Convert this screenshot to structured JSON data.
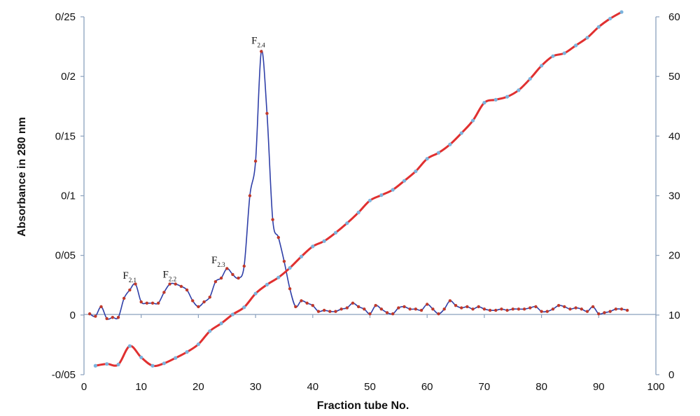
{
  "chart_data": {
    "type": "line",
    "xlabel": "Fraction tube No.",
    "ylabel": "Absorbance in 280 nm",
    "x_ticks": [
      "0",
      "10",
      "20",
      "30",
      "40",
      "50",
      "60",
      "70",
      "80",
      "90",
      "100"
    ],
    "y_left_ticks": [
      "-0/05",
      "0",
      "0/05",
      "0/1",
      "0/15",
      "0/2",
      "0/25"
    ],
    "y_right_ticks": [
      "0",
      "10",
      "20",
      "30",
      "40",
      "50",
      "60"
    ],
    "xlim": [
      0,
      100
    ],
    "ylim_left": [
      -0.05,
      0.25
    ],
    "ylim_right": [
      0,
      60
    ],
    "grid": false,
    "legend": "none",
    "peaks": [
      {
        "main": "F",
        "sub": "2.1",
        "x": 8,
        "y": 0.028
      },
      {
        "main": "F",
        "sub": "2.2",
        "x": 15,
        "y": 0.029
      },
      {
        "main": "F",
        "sub": "2.3",
        "x": 23.5,
        "y": 0.041
      },
      {
        "main": "F",
        "sub": "2.4",
        "x": 30.5,
        "y": 0.225
      }
    ],
    "series": [
      {
        "axis": "left",
        "color": "#2f3fa8",
        "marker_color": "#c0392b",
        "x": [
          1,
          2,
          3,
          4,
          5,
          6,
          7,
          8,
          9,
          10,
          11,
          12,
          13,
          14,
          15,
          16,
          17,
          18,
          19,
          20,
          21,
          22,
          23,
          24,
          25,
          26,
          27,
          28,
          29,
          30,
          31,
          32,
          33,
          34,
          35,
          36,
          37,
          38,
          39,
          40,
          41,
          42,
          43,
          44,
          45,
          46,
          47,
          48,
          49,
          50,
          51,
          52,
          53,
          54,
          55,
          56,
          57,
          58,
          59,
          60,
          61,
          62,
          63,
          64,
          65,
          66,
          67,
          68,
          69,
          70,
          71,
          72,
          73,
          74,
          75,
          76,
          77,
          78,
          79,
          80,
          81,
          82,
          83,
          84,
          85,
          86,
          87,
          88,
          89,
          90,
          91,
          92,
          93,
          94,
          95
        ],
        "y": [
          0.001,
          -0.001,
          0.007,
          -0.003,
          -0.002,
          -0.002,
          0.014,
          0.021,
          0.026,
          0.011,
          0.01,
          0.01,
          0.01,
          0.019,
          0.026,
          0.026,
          0.024,
          0.021,
          0.012,
          0.007,
          0.011,
          0.015,
          0.028,
          0.031,
          0.039,
          0.034,
          0.031,
          0.041,
          0.1,
          0.129,
          0.221,
          0.169,
          0.08,
          0.065,
          0.045,
          0.022,
          0.007,
          0.012,
          0.01,
          0.008,
          0.003,
          0.004,
          0.003,
          0.003,
          0.005,
          0.006,
          0.01,
          0.007,
          0.005,
          0.001,
          0.008,
          0.005,
          0.002,
          0.001,
          0.006,
          0.007,
          0.005,
          0.005,
          0.004,
          0.009,
          0.005,
          0.001,
          0.005,
          0.012,
          0.008,
          0.006,
          0.007,
          0.005,
          0.007,
          0.005,
          0.004,
          0.004,
          0.005,
          0.004,
          0.005,
          0.005,
          0.005,
          0.006,
          0.007,
          0.003,
          0.003,
          0.005,
          0.008,
          0.007,
          0.005,
          0.006,
          0.005,
          0.003,
          0.007,
          0.001,
          0.002,
          0.003,
          0.005,
          0.005,
          0.004
        ]
      },
      {
        "axis": "right",
        "color": "#e03030",
        "marker_color": "#7ab3dd",
        "x": [
          2,
          4,
          6,
          8,
          10,
          12,
          14,
          16,
          18,
          20,
          22,
          24,
          26,
          28,
          30,
          32,
          34,
          36,
          38,
          40,
          42,
          44,
          46,
          48,
          50,
          52,
          54,
          56,
          58,
          60,
          62,
          64,
          66,
          68,
          70,
          72,
          74,
          76,
          78,
          80,
          82,
          84,
          86,
          88,
          90,
          92,
          94
        ],
        "y": [
          1.5,
          1.8,
          1.7,
          4.8,
          2.9,
          1.5,
          1.9,
          2.8,
          3.8,
          5.1,
          7.3,
          8.6,
          10.1,
          11.3,
          13.6,
          15.1,
          16.3,
          17.9,
          19.8,
          21.5,
          22.4,
          23.8,
          25.4,
          27.2,
          29.2,
          30.1,
          31.0,
          32.5,
          34.1,
          36.2,
          37.2,
          38.6,
          40.5,
          42.6,
          45.6,
          46.1,
          46.6,
          47.7,
          49.6,
          51.8,
          53.4,
          53.9,
          55.2,
          56.5,
          58.3,
          59.7,
          60.8
        ]
      }
    ]
  }
}
